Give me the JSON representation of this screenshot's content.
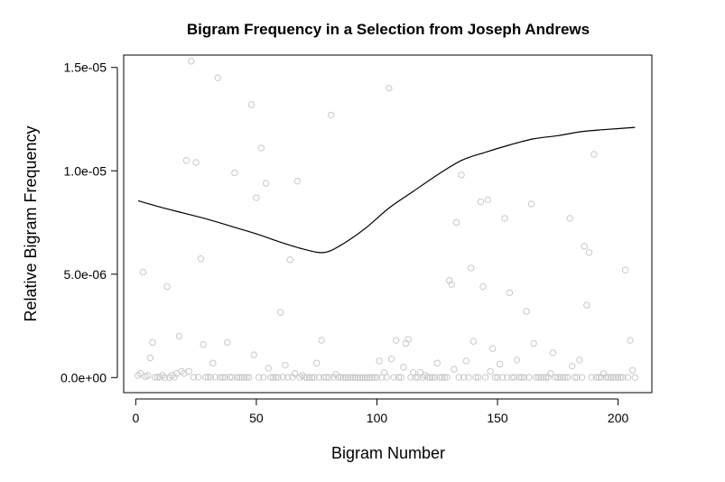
{
  "chart_data": {
    "type": "scatter",
    "title": "Bigram Frequency in a Selection from Joseph Andrews",
    "xlabel": "Bigram Number",
    "ylabel": "Relative Bigram Frequency",
    "xlim": [
      -5,
      214
    ],
    "ylim": [
      -7.3e-07,
      1.56e-05
    ],
    "x_ticks": [
      0,
      50,
      100,
      150,
      200
    ],
    "x_tick_labels": [
      "0",
      "50",
      "100",
      "150",
      "200"
    ],
    "y_ticks": [
      0,
      5e-06,
      1e-05,
      1.5e-05
    ],
    "y_tick_labels": [
      "0.0e+00",
      "5.0e-06",
      "1.0e-05",
      "1.5e-05"
    ],
    "grid": false,
    "point_color": "#c8c8c8",
    "line_color": "#000000",
    "series": [
      {
        "kind": "points",
        "x": [
          1,
          2,
          3,
          4,
          5,
          6,
          7,
          8,
          9,
          10,
          11,
          12,
          13,
          14,
          15,
          16,
          17,
          18,
          19,
          20,
          21,
          22,
          23,
          24,
          25,
          26,
          27,
          28,
          29,
          30,
          31,
          32,
          33,
          34,
          35,
          36,
          37,
          38,
          39,
          40,
          41,
          42,
          43,
          44,
          45,
          46,
          47,
          48,
          49,
          50,
          51,
          52,
          53,
          54,
          55,
          56,
          57,
          58,
          59,
          60,
          61,
          62,
          63,
          64,
          65,
          66,
          67,
          68,
          69,
          70,
          71,
          72,
          73,
          74,
          75,
          76,
          77,
          78,
          79,
          80,
          81,
          82,
          83,
          84,
          85,
          86,
          87,
          88,
          89,
          90,
          91,
          92,
          93,
          94,
          95,
          96,
          97,
          98,
          99,
          100,
          101,
          102,
          103,
          104,
          105,
          106,
          107,
          108,
          109,
          110,
          111,
          112,
          113,
          114,
          115,
          116,
          117,
          118,
          119,
          120,
          121,
          122,
          123,
          124,
          125,
          126,
          127,
          128,
          129,
          130,
          131,
          132,
          133,
          134,
          135,
          136,
          137,
          138,
          139,
          140,
          141,
          142,
          143,
          144,
          145,
          146,
          147,
          148,
          149,
          150,
          151,
          152,
          153,
          154,
          155,
          156,
          157,
          158,
          159,
          160,
          161,
          162,
          163,
          164,
          165,
          166,
          167,
          168,
          169,
          170,
          171,
          172,
          173,
          174,
          175,
          176,
          177,
          178,
          179,
          180,
          181,
          182,
          183,
          184,
          185,
          186,
          187,
          188,
          189,
          190,
          191,
          192,
          193,
          194,
          195,
          196,
          197,
          198,
          199,
          200,
          201,
          202,
          203,
          204,
          205,
          206,
          207
        ],
        "y": [
          1e-07,
          2e-07,
          5.1e-06,
          5e-08,
          1e-07,
          9.5e-07,
          1.7e-06,
          1e-08,
          2e-08,
          1e-08,
          1e-07,
          0,
          4.4e-06,
          0,
          1e-07,
          1e-08,
          2e-07,
          2e-06,
          3e-07,
          2e-07,
          1.05e-05,
          3e-07,
          1.53e-05,
          1e-08,
          1.04e-05,
          2e-08,
          5.75e-06,
          1.6e-06,
          1e-08,
          2e-08,
          1e-08,
          7e-07,
          2e-08,
          1.45e-05,
          1e-08,
          1e-08,
          1e-08,
          1.7e-06,
          2e-08,
          1e-08,
          9.9e-06,
          1e-08,
          1e-08,
          1e-08,
          1e-08,
          1e-08,
          1e-08,
          1.32e-05,
          1.1e-06,
          8.7e-06,
          1e-08,
          1.11e-05,
          1e-08,
          9.4e-06,
          4.5e-07,
          1e-08,
          1e-08,
          1e-08,
          1e-08,
          3.15e-06,
          2e-08,
          6e-07,
          1e-08,
          5.7e-06,
          1e-08,
          2e-07,
          9.5e-06,
          1e-08,
          1e-07,
          1e-08,
          0,
          1e-08,
          0,
          1e-08,
          7e-07,
          1e-08,
          1.8e-06,
          1e-08,
          1e-08,
          1e-08,
          1.27e-05,
          1e-08,
          1.5e-07,
          1e-08,
          1e-08,
          1e-08,
          0,
          0,
          1e-08,
          1e-08,
          0,
          0,
          0,
          0,
          0,
          0,
          0,
          0,
          1e-08,
          1e-08,
          8e-07,
          1e-08,
          2.5e-07,
          1e-08,
          1.4e-05,
          9e-07,
          1e-08,
          1.8e-06,
          1e-08,
          1e-08,
          5e-07,
          1.65e-06,
          1.85e-06,
          1e-08,
          2.5e-07,
          1e-08,
          1e-08,
          2.5e-07,
          1e-08,
          1e-07,
          1e-08,
          1e-08,
          1e-08,
          1e-08,
          7e-07,
          1e-08,
          1e-08,
          1e-08,
          1e-08,
          4.7e-06,
          4.5e-06,
          4e-07,
          7.5e-06,
          1e-08,
          9.8e-06,
          1e-08,
          8e-07,
          1e-08,
          5.3e-06,
          1.75e-06,
          1e-08,
          1e-08,
          8.5e-06,
          4.4e-06,
          1e-08,
          8.6e-06,
          3e-07,
          1.4e-06,
          1e-08,
          1e-08,
          6.5e-07,
          1e-08,
          7.7e-06,
          1e-08,
          4.1e-06,
          1e-08,
          1e-08,
          8.5e-07,
          1e-08,
          1e-08,
          1e-08,
          3.2e-06,
          1e-08,
          8.4e-06,
          1.65e-06,
          1e-08,
          1e-08,
          1e-08,
          1e-08,
          1e-08,
          1e-08,
          2e-07,
          1.2e-06,
          1e-08,
          1e-08,
          1e-08,
          1e-08,
          1e-08,
          1e-08,
          7.7e-06,
          5.5e-07,
          1e-08,
          1e-08,
          8.5e-07,
          1e-08,
          6.35e-06,
          3.5e-06,
          6.05e-06,
          1e-08,
          1.08e-05,
          1e-08,
          1e-08,
          1e-08,
          2e-07,
          1e-08,
          1e-08,
          0,
          1e-08,
          1e-08,
          1e-08,
          1e-08,
          1e-08,
          5.2e-06,
          1e-08,
          1.8e-06,
          3.5e-07,
          0
        ]
      },
      {
        "kind": "smooth-line",
        "x": [
          1,
          10,
          20,
          30,
          40,
          50,
          60,
          70,
          78,
          85,
          95,
          105,
          115,
          125,
          135,
          145,
          155,
          165,
          175,
          185,
          195,
          207
        ],
        "y": [
          8.55e-06,
          8.25e-06,
          7.95e-06,
          7.65e-06,
          7.3e-06,
          6.95e-06,
          6.55e-06,
          6.2e-06,
          6.05e-06,
          6.4e-06,
          7.2e-06,
          8.2e-06,
          9e-06,
          9.8e-06,
          1.05e-05,
          1.09e-05,
          1.125e-05,
          1.155e-05,
          1.17e-05,
          1.19e-05,
          1.2e-05,
          1.21e-05
        ]
      }
    ]
  }
}
